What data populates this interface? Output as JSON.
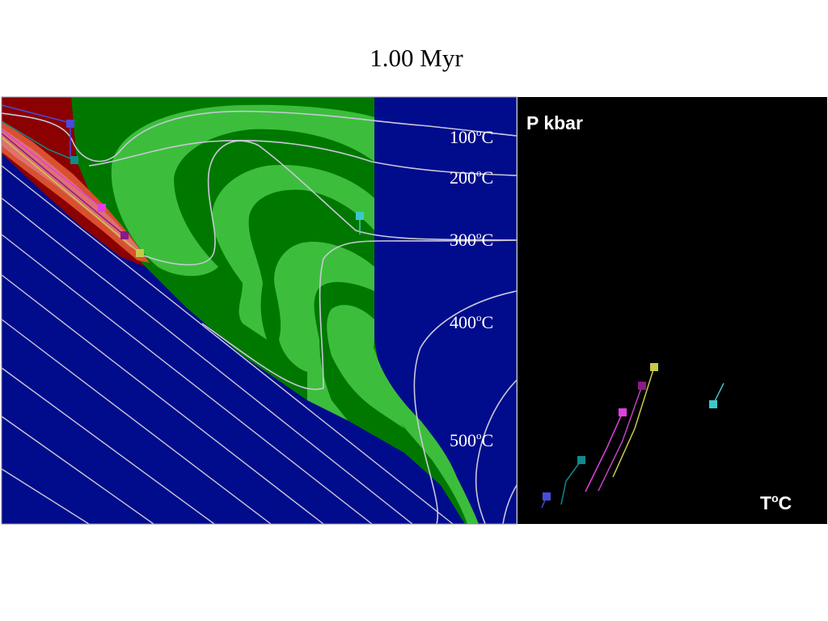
{
  "title": "1.00 Myr",
  "isotherm_labels": [
    {
      "id": "100",
      "value": "100",
      "unit": "C"
    },
    {
      "id": "200",
      "value": "200",
      "unit": "C"
    },
    {
      "id": "300",
      "value": "300",
      "unit": "C"
    },
    {
      "id": "400",
      "value": "400",
      "unit": "C"
    },
    {
      "id": "500",
      "value": "500",
      "unit": "C"
    }
  ],
  "degree_mark": "o",
  "pt_panel": {
    "y_label": "P kbar",
    "x_label_prefix": "T",
    "x_label_suffix": "C"
  },
  "colors": {
    "mantle": "#000c8c",
    "green_dark": "#007800",
    "green_light": "#3cbe3c",
    "crust_red": "#8b0000",
    "isotherm": "#c8c8d8",
    "panel_bg": "#000000"
  },
  "markers": [
    {
      "color": "#4a4adc"
    },
    {
      "color": "#118a8a"
    },
    {
      "color": "#e040e0"
    },
    {
      "color": "#8a1a8a"
    },
    {
      "color": "#c8c84a"
    },
    {
      "color": "#3cc8c8"
    }
  ]
}
